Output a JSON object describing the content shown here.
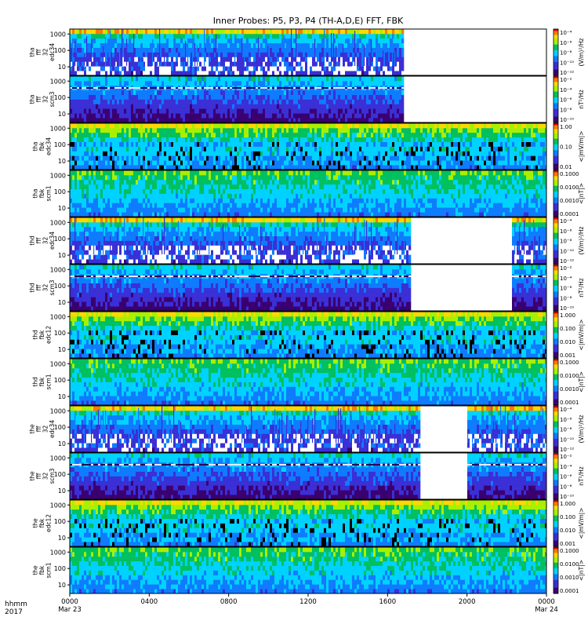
{
  "chart_data": {
    "type": "heatmap",
    "title": "Inner Probes: P5, P3, P4 (TH-A,D,E) FFT, FBK",
    "x_axis": {
      "row_label_1": "hhmm",
      "row_label_2": "2017",
      "ticks": [
        {
          "hour": 0,
          "label": "0000",
          "date": "Mar 23"
        },
        {
          "hour": 4,
          "label": "0400",
          "date": ""
        },
        {
          "hour": 8,
          "label": "0800",
          "date": ""
        },
        {
          "hour": 12,
          "label": "1200",
          "date": ""
        },
        {
          "hour": 16,
          "label": "1600",
          "date": ""
        },
        {
          "hour": 20,
          "label": "2000",
          "date": ""
        },
        {
          "hour": 24,
          "label": "0000",
          "date": "Mar 24"
        }
      ],
      "range_hours": [
        0,
        24
      ]
    },
    "y_axis": {
      "scale": "log",
      "range_hz": [
        3,
        2000
      ],
      "ticks": [
        {
          "value": 10,
          "label": "10"
        },
        {
          "value": 100,
          "label": "100"
        },
        {
          "value": 1000,
          "label": "1000"
        }
      ]
    },
    "colormap": "rainbow",
    "panels": [
      {
        "probe": "tha",
        "ylabel": [
          "tha",
          "fff",
          "32",
          "edc34"
        ],
        "kind": "fff-e",
        "cbar_label": "(V/m)²/Hz",
        "cbar_ticks": [
          "10⁻⁴",
          "10⁻⁶",
          "10⁻⁸",
          "10⁻¹⁰",
          "10⁻¹²"
        ],
        "data_end_hour": 16.8,
        "data_resume_hour": null
      },
      {
        "probe": "tha",
        "ylabel": [
          "tha",
          "fff",
          "32",
          "scm3"
        ],
        "kind": "fff-b",
        "cbar_label": "nT²/Hz",
        "cbar_ticks": [
          "10⁻²",
          "10⁻⁴",
          "10⁻⁶",
          "10⁻⁸",
          "10⁻¹⁰"
        ],
        "data_end_hour": 16.8,
        "data_resume_hour": null
      },
      {
        "probe": "tha",
        "ylabel": [
          "tha",
          "fbk",
          "edc34"
        ],
        "kind": "fbk-e",
        "cbar_label": "<|mV/m|>",
        "cbar_ticks": [
          "1.00",
          "0.10",
          "0.01"
        ],
        "data_end_hour": 24,
        "data_resume_hour": null
      },
      {
        "probe": "tha",
        "ylabel": [
          "tha",
          "fbk",
          "scm1"
        ],
        "kind": "fbk-b",
        "cbar_label": "<|nT|>",
        "cbar_ticks": [
          "0.1000",
          "0.0100",
          "0.0010",
          "0.0001"
        ],
        "data_end_hour": 24,
        "data_resume_hour": null
      },
      {
        "probe": "thd",
        "ylabel": [
          "thd",
          "fff",
          "32",
          "edc34"
        ],
        "kind": "fff-e",
        "cbar_label": "(V/m)²/Hz",
        "cbar_ticks": [
          "10⁻⁴",
          "10⁻⁶",
          "10⁻⁸",
          "10⁻¹⁰",
          "10⁻¹²"
        ],
        "data_end_hour": 17.1,
        "data_resume_hour": 22.2
      },
      {
        "probe": "thd",
        "ylabel": [
          "thd",
          "fff",
          "32",
          "scm3"
        ],
        "kind": "fff-b",
        "cbar_label": "nT²/Hz",
        "cbar_ticks": [
          "10⁻²",
          "10⁻⁴",
          "10⁻⁶",
          "10⁻⁸",
          "10⁻¹⁰"
        ],
        "data_end_hour": 17.1,
        "data_resume_hour": 22.2
      },
      {
        "probe": "thd",
        "ylabel": [
          "thd",
          "fbk",
          "edc12"
        ],
        "kind": "fbk-e",
        "cbar_label": "<|mV/m|>",
        "cbar_ticks": [
          "1.000",
          "0.100",
          "0.010",
          "0.001"
        ],
        "data_end_hour": 24,
        "data_resume_hour": null
      },
      {
        "probe": "thd",
        "ylabel": [
          "thd",
          "fbk",
          "scm1"
        ],
        "kind": "fbk-b",
        "cbar_label": "<|nT|>",
        "cbar_ticks": [
          "0.1000",
          "0.0100",
          "0.0010",
          "0.0001"
        ],
        "data_end_hour": 24,
        "data_resume_hour": null
      },
      {
        "probe": "the",
        "ylabel": [
          "the",
          "fff",
          "32",
          "edc34"
        ],
        "kind": "fff-e",
        "cbar_label": "(V/m)²/Hz",
        "cbar_ticks": [
          "10⁻⁴",
          "10⁻⁶",
          "10⁻⁸",
          "10⁻¹⁰",
          "10⁻¹²"
        ],
        "data_end_hour": 17.6,
        "data_resume_hour": 20.0
      },
      {
        "probe": "the",
        "ylabel": [
          "the",
          "fff",
          "32",
          "scm3"
        ],
        "kind": "fff-b",
        "cbar_label": "nT²/Hz",
        "cbar_ticks": [
          "10⁻²",
          "10⁻⁴",
          "10⁻⁶",
          "10⁻⁸",
          "10⁻¹⁰"
        ],
        "data_end_hour": 17.6,
        "data_resume_hour": 20.0
      },
      {
        "probe": "the",
        "ylabel": [
          "the",
          "fbk",
          "edc12"
        ],
        "kind": "fbk-e",
        "cbar_label": "<|mV/m|>",
        "cbar_ticks": [
          "1.000",
          "0.100",
          "0.010",
          "0.001"
        ],
        "data_end_hour": 24,
        "data_resume_hour": null
      },
      {
        "probe": "the",
        "ylabel": [
          "the",
          "fbk",
          "scm1"
        ],
        "kind": "fbk-b",
        "cbar_label": "<|nT|>",
        "cbar_ticks": [
          "0.1000",
          "0.0100",
          "0.0010",
          "0.0001"
        ],
        "data_end_hour": 24,
        "data_resume_hour": null
      }
    ]
  }
}
